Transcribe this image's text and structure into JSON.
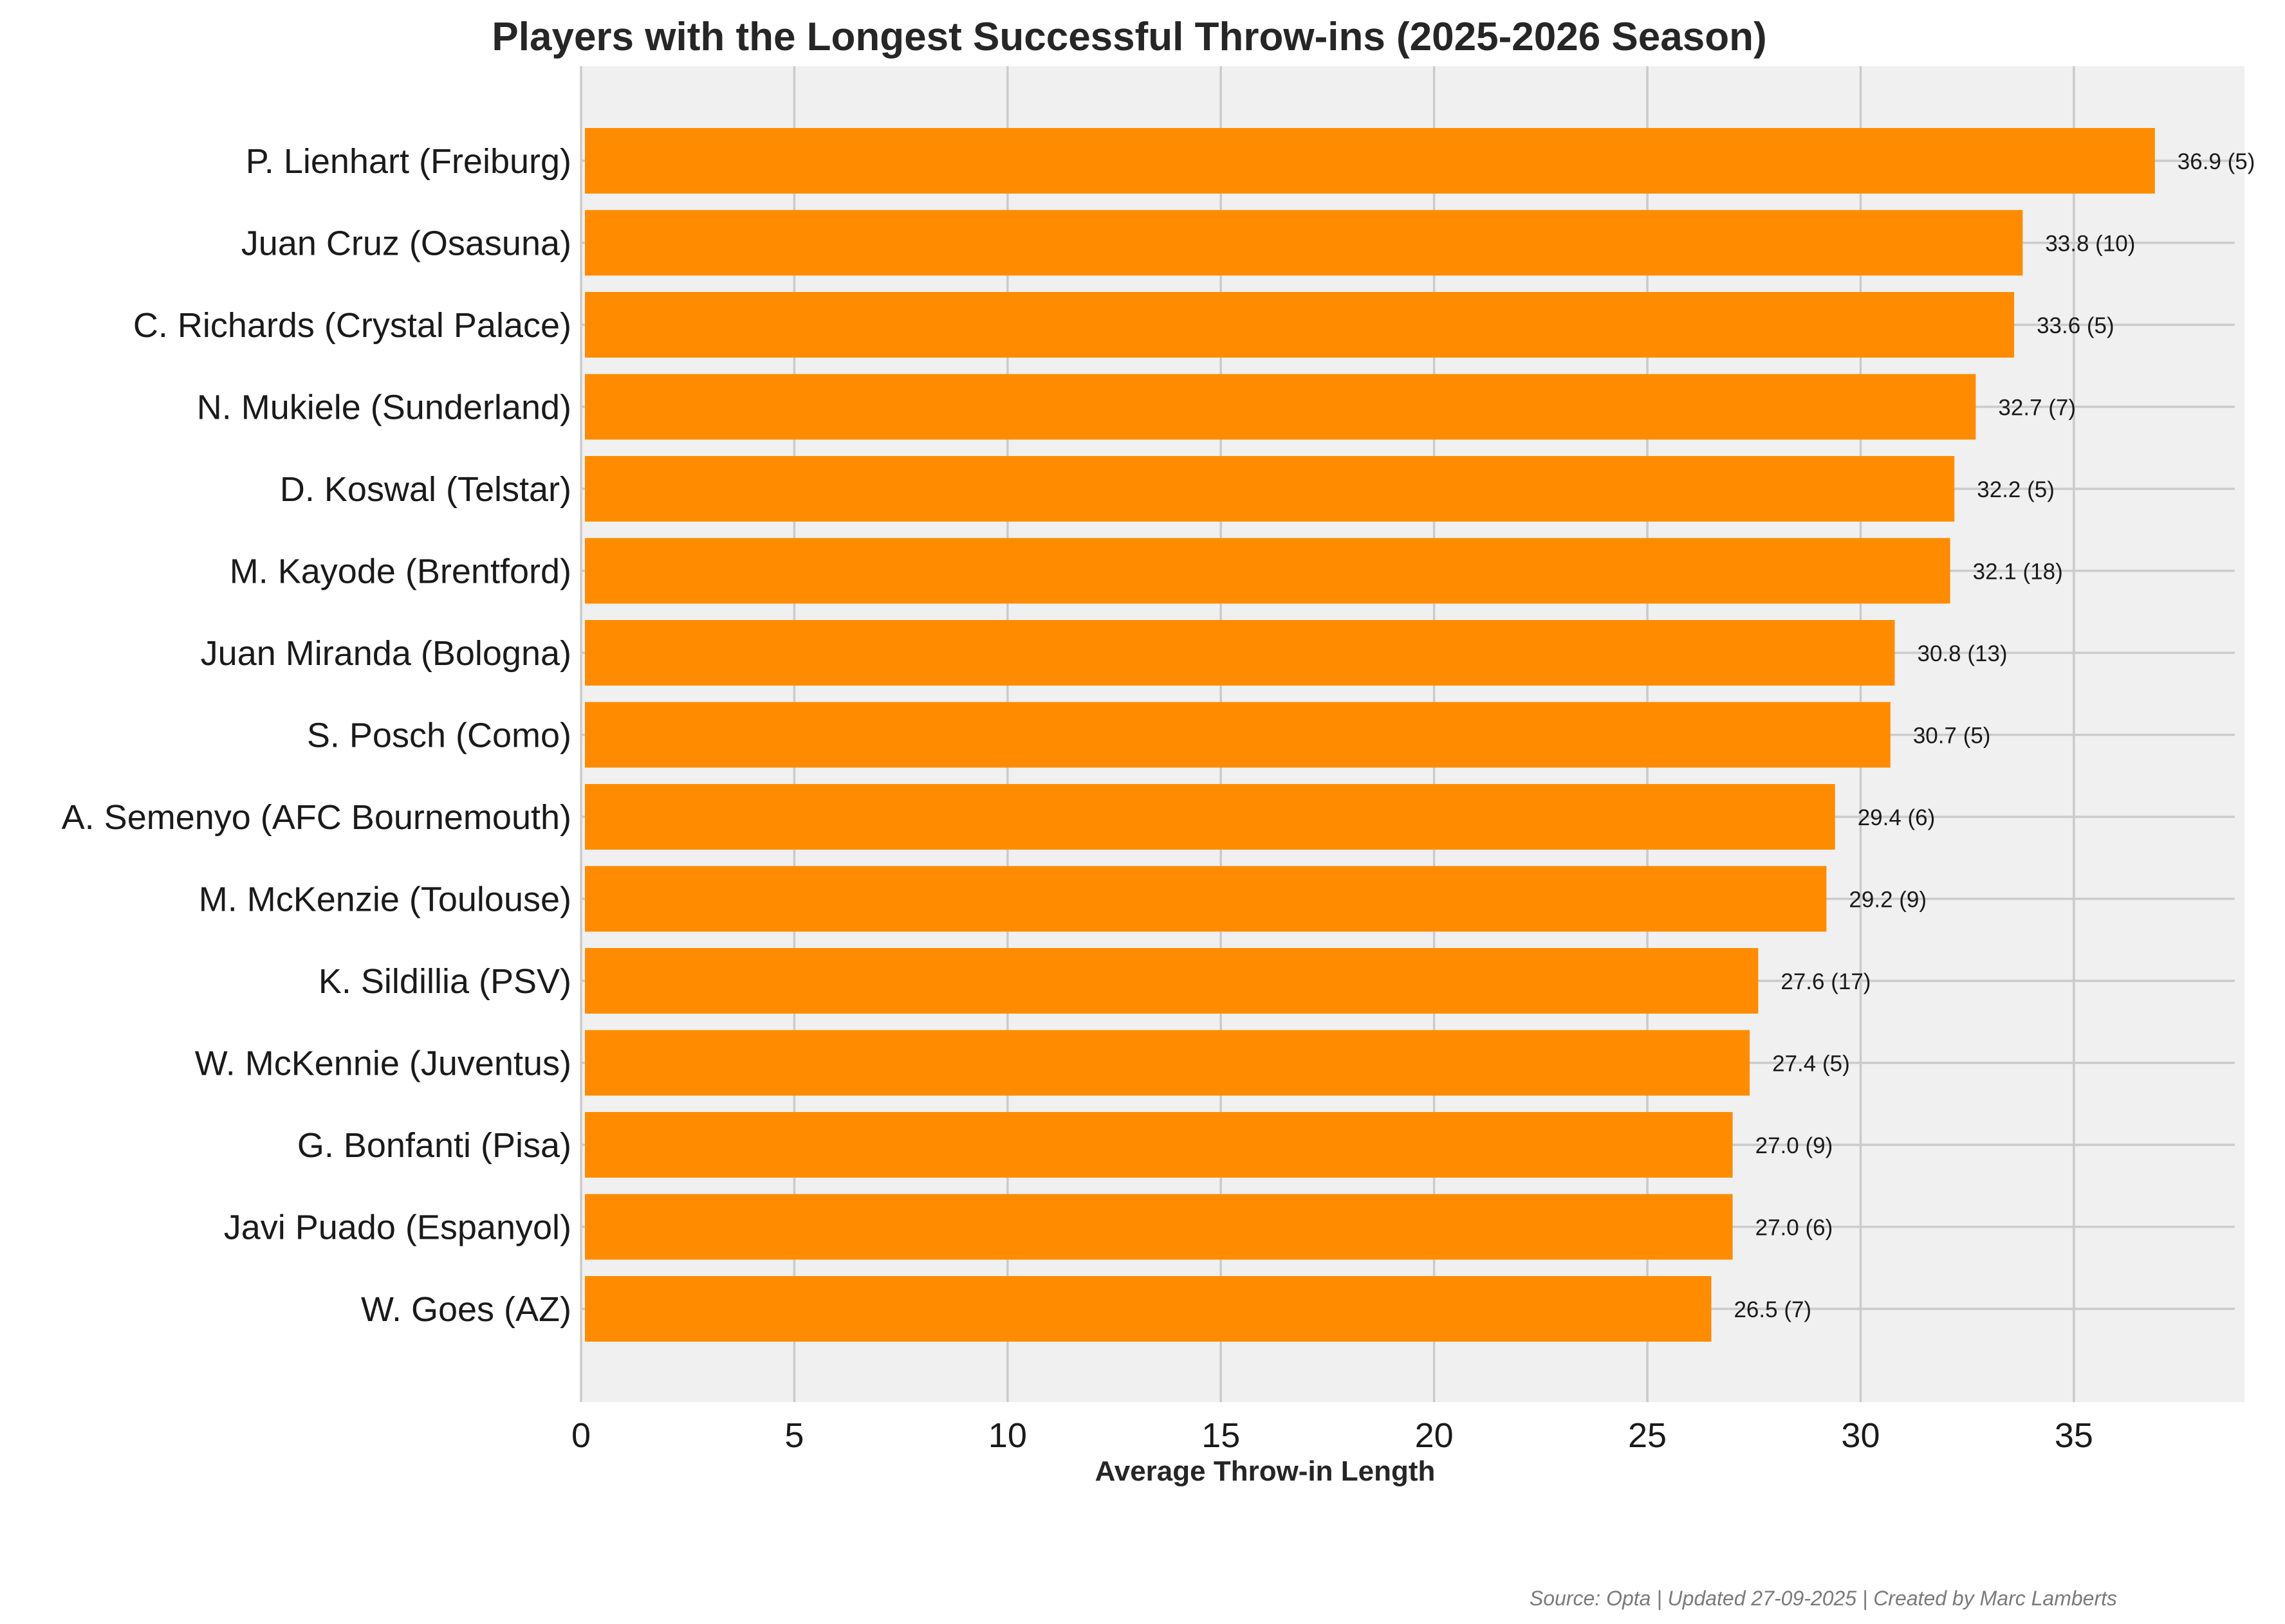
{
  "chart_data": {
    "type": "bar",
    "orientation": "horizontal",
    "title": "Players with the Longest Successful Throw-ins (2025-2026 Season)",
    "xlabel": "Average Throw-in Length",
    "ylabel": "",
    "xlim": [
      0,
      39
    ],
    "xticks": [
      0,
      5,
      10,
      15,
      20,
      25,
      30,
      35
    ],
    "grid": true,
    "categories": [
      "P. Lienhart (Freiburg)",
      "Juan Cruz (Osasuna)",
      "C. Richards (Crystal Palace)",
      "N. Mukiele (Sunderland)",
      "D. Koswal (Telstar)",
      "M. Kayode (Brentford)",
      "Juan Miranda (Bologna)",
      "S. Posch (Como)",
      "A. Semenyo (AFC Bournemouth)",
      "M. McKenzie (Toulouse)",
      "K. Sildillia (PSV)",
      "W. McKennie (Juventus)",
      "G. Bonfanti (Pisa)",
      "Javi Puado (Espanyol)",
      "W. Goes (AZ)"
    ],
    "values": [
      36.9,
      33.8,
      33.6,
      32.7,
      32.2,
      32.1,
      30.8,
      30.7,
      29.4,
      29.2,
      27.6,
      27.4,
      27.0,
      27.0,
      26.5
    ],
    "value_labels": [
      "36.9 (5)",
      "33.8 (10)",
      "33.6 (5)",
      "32.7 (7)",
      "32.2 (5)",
      "32.1 (18)",
      "30.8 (13)",
      "30.7 (5)",
      "29.4 (6)",
      "29.2 (9)",
      "27.6 (17)",
      "27.4 (5)",
      "27.0 (9)",
      "27.0 (6)",
      "26.5 (7)"
    ],
    "bar_color": "#ff8c00",
    "background_color": "#f0f0f0",
    "grid_color": "#cbcbcb",
    "source": "Source: Opta | Updated 27-09-2025 | Created by Marc Lamberts"
  }
}
